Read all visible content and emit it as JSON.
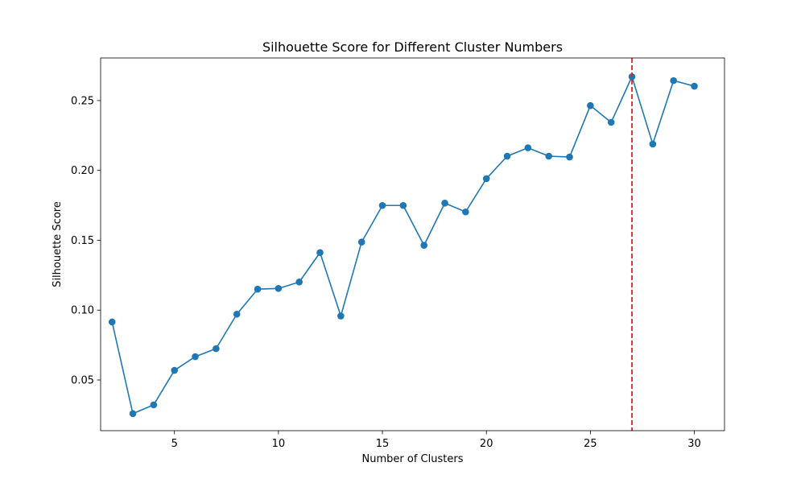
{
  "chart_data": {
    "type": "line",
    "title": "Silhouette Score for Different Cluster Numbers",
    "xlabel": "Number of Clusters",
    "ylabel": "Silhouette Score",
    "xlim": [
      1.45,
      31.45
    ],
    "ylim": [
      0.0137,
      0.2805
    ],
    "xticks": [
      5,
      10,
      15,
      20,
      25,
      30
    ],
    "yticks": [
      0.05,
      0.1,
      0.15,
      0.2,
      0.25
    ],
    "ytick_labels": [
      "0.05",
      "0.10",
      "0.15",
      "0.20",
      "0.25"
    ],
    "grid": false,
    "series": [
      {
        "color": "#1f77b4",
        "marker": "circle",
        "x": [
          2,
          3,
          4,
          5,
          6,
          7,
          8,
          9,
          10,
          11,
          12,
          13,
          14,
          15,
          16,
          17,
          18,
          19,
          20,
          21,
          22,
          23,
          24,
          25,
          26,
          27,
          28,
          29,
          30
        ],
        "values": [
          0.0915,
          0.0259,
          0.0322,
          0.0569,
          0.0667,
          0.0724,
          0.0971,
          0.115,
          0.1155,
          0.1201,
          0.1412,
          0.0958,
          0.1487,
          0.1749,
          0.1749,
          0.1464,
          0.1766,
          0.1703,
          0.1941,
          0.2102,
          0.2162,
          0.2102,
          0.2096,
          0.2464,
          0.2344,
          0.2671,
          0.2189,
          0.2643,
          0.2603
        ]
      }
    ],
    "annotations": [
      {
        "type": "vline",
        "x": 27,
        "color": "#d62728",
        "style": "dashed"
      }
    ]
  }
}
